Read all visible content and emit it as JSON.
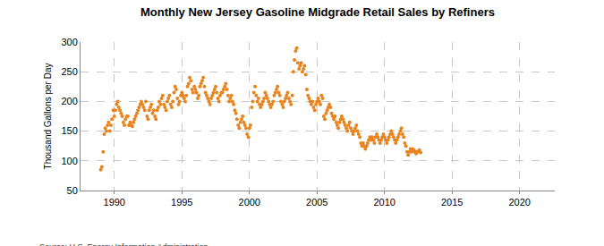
{
  "chart_data": {
    "type": "scatter",
    "title": "Monthly New Jersey Gasoline Midgrade Retail Sales by Refiners",
    "y_label": "Thousand Gallons per Day",
    "annotations": [
      "Source: U.S. Energy Information Administration"
    ],
    "color": "#e8831e",
    "marker": "circle",
    "grid": true,
    "xlim": [
      1987.5,
      2022.6
    ],
    "xticks": [
      1990,
      1995,
      2000,
      2005,
      2010,
      2015,
      2020
    ],
    "ylim": [
      50,
      300
    ],
    "yticks": [
      50,
      100,
      150,
      200,
      250,
      300
    ],
    "x": [
      1989,
      1989.08,
      1989.17,
      1989.25,
      1989.33,
      1989.42,
      1989.5,
      1989.58,
      1989.67,
      1989.75,
      1989.83,
      1989.92,
      1990,
      1990.08,
      1990.17,
      1990.25,
      1990.33,
      1990.42,
      1990.5,
      1990.58,
      1990.67,
      1990.75,
      1990.83,
      1990.92,
      1991,
      1991.08,
      1991.17,
      1991.25,
      1991.33,
      1991.42,
      1991.5,
      1991.58,
      1991.67,
      1991.75,
      1991.83,
      1991.92,
      1992,
      1992.08,
      1992.17,
      1992.25,
      1992.33,
      1992.42,
      1992.5,
      1992.58,
      1992.67,
      1992.75,
      1992.83,
      1992.92,
      1993,
      1993.08,
      1993.17,
      1993.25,
      1993.33,
      1993.42,
      1993.5,
      1993.58,
      1993.67,
      1993.75,
      1993.83,
      1993.92,
      1994,
      1994.08,
      1994.17,
      1994.25,
      1994.33,
      1994.42,
      1994.5,
      1994.58,
      1994.67,
      1994.75,
      1994.83,
      1994.92,
      1995,
      1995.08,
      1995.17,
      1995.25,
      1995.33,
      1995.42,
      1995.5,
      1995.58,
      1995.67,
      1995.75,
      1995.83,
      1995.92,
      1996,
      1996.08,
      1996.17,
      1996.25,
      1996.33,
      1996.42,
      1996.5,
      1996.58,
      1996.67,
      1996.75,
      1996.83,
      1996.92,
      1997,
      1997.08,
      1997.17,
      1997.25,
      1997.33,
      1997.42,
      1997.5,
      1997.58,
      1997.67,
      1997.75,
      1997.83,
      1997.92,
      1998,
      1998.08,
      1998.17,
      1998.25,
      1998.33,
      1998.42,
      1998.5,
      1998.58,
      1998.67,
      1998.75,
      1998.83,
      1998.92,
      1999,
      1999.08,
      1999.17,
      1999.25,
      1999.33,
      1999.42,
      1999.5,
      1999.58,
      1999.67,
      1999.75,
      1999.83,
      1999.92,
      2000,
      2000.08,
      2000.17,
      2000.25,
      2000.33,
      2000.42,
      2000.5,
      2000.58,
      2000.67,
      2000.75,
      2000.83,
      2000.92,
      2001,
      2001.08,
      2001.17,
      2001.25,
      2001.33,
      2001.42,
      2001.5,
      2001.58,
      2001.67,
      2001.75,
      2001.83,
      2001.92,
      2002,
      2002.08,
      2002.17,
      2002.25,
      2002.33,
      2002.42,
      2002.5,
      2002.58,
      2002.67,
      2002.75,
      2002.83,
      2002.92,
      2003,
      2003.08,
      2003.17,
      2003.25,
      2003.33,
      2003.42,
      2003.5,
      2003.58,
      2003.67,
      2003.75,
      2003.83,
      2003.92,
      2004,
      2004.08,
      2004.17,
      2004.25,
      2004.33,
      2004.42,
      2004.5,
      2004.58,
      2004.67,
      2004.75,
      2004.83,
      2004.92,
      2005,
      2005.08,
      2005.17,
      2005.25,
      2005.33,
      2005.42,
      2005.5,
      2005.58,
      2005.67,
      2005.75,
      2005.83,
      2005.92,
      2006,
      2006.08,
      2006.17,
      2006.25,
      2006.33,
      2006.42,
      2006.5,
      2006.58,
      2006.67,
      2006.75,
      2006.83,
      2006.92,
      2007,
      2007.08,
      2007.17,
      2007.25,
      2007.33,
      2007.42,
      2007.5,
      2007.58,
      2007.67,
      2007.75,
      2007.83,
      2007.92,
      2008,
      2008.08,
      2008.17,
      2008.25,
      2008.33,
      2008.42,
      2008.5,
      2008.58,
      2008.67,
      2008.75,
      2008.83,
      2008.92,
      2009,
      2009.08,
      2009.17,
      2009.25,
      2009.33,
      2009.42,
      2009.5,
      2009.58,
      2009.67,
      2009.75,
      2009.83,
      2009.92,
      2010,
      2010.08,
      2010.17,
      2010.25,
      2010.33,
      2010.42,
      2010.5,
      2010.58,
      2010.67,
      2010.75,
      2010.83,
      2010.92,
      2011,
      2011.08,
      2011.17,
      2011.25,
      2011.33,
      2011.42,
      2011.5,
      2011.58,
      2011.67,
      2011.75,
      2011.83,
      2011.92,
      2012,
      2012.08,
      2012.17,
      2012.25,
      2012.33,
      2012.42,
      2012.5,
      2012.58,
      2012.67
    ],
    "values": [
      85,
      90,
      115,
      145,
      155,
      150,
      160,
      165,
      150,
      160,
      170,
      185,
      175,
      185,
      195,
      200,
      190,
      185,
      180,
      175,
      165,
      160,
      170,
      175,
      175,
      160,
      165,
      160,
      158,
      165,
      170,
      175,
      180,
      185,
      190,
      195,
      200,
      195,
      190,
      185,
      200,
      175,
      170,
      185,
      190,
      195,
      180,
      185,
      175,
      170,
      185,
      190,
      200,
      195,
      205,
      210,
      195,
      190,
      185,
      200,
      205,
      210,
      195,
      190,
      200,
      215,
      225,
      220,
      205,
      195,
      200,
      210,
      215,
      210,
      205,
      200,
      210,
      225,
      230,
      240,
      235,
      220,
      215,
      225,
      220,
      215,
      205,
      210,
      225,
      230,
      235,
      240,
      225,
      215,
      210,
      205,
      200,
      195,
      205,
      210,
      215,
      220,
      225,
      215,
      205,
      200,
      210,
      215,
      215,
      220,
      225,
      230,
      220,
      210,
      200,
      205,
      210,
      200,
      195,
      185,
      180,
      170,
      160,
      155,
      165,
      170,
      175,
      165,
      160,
      155,
      145,
      140,
      155,
      160,
      190,
      200,
      215,
      225,
      210,
      200,
      205,
      195,
      190,
      195,
      200,
      205,
      215,
      210,
      205,
      200,
      195,
      190,
      195,
      200,
      210,
      215,
      220,
      225,
      215,
      210,
      200,
      195,
      190,
      200,
      205,
      210,
      215,
      205,
      200,
      195,
      210,
      250,
      270,
      285,
      290,
      265,
      255,
      260,
      265,
      250,
      255,
      260,
      245,
      220,
      210,
      205,
      200,
      195,
      200,
      190,
      185,
      195,
      200,
      205,
      200,
      195,
      210,
      205,
      175,
      170,
      180,
      185,
      190,
      195,
      190,
      180,
      175,
      170,
      175,
      165,
      160,
      155,
      165,
      170,
      175,
      170,
      165,
      160,
      155,
      150,
      160,
      165,
      155,
      150,
      145,
      150,
      155,
      160,
      150,
      145,
      140,
      130,
      125,
      130,
      125,
      120,
      125,
      130,
      135,
      140,
      135,
      140,
      135,
      130,
      140,
      145,
      140,
      135,
      130,
      135,
      140,
      145,
      140,
      135,
      130,
      135,
      140,
      145,
      150,
      145,
      140,
      135,
      130,
      135,
      140,
      145,
      150,
      155,
      145,
      140,
      130,
      125,
      115,
      110,
      115,
      120,
      115,
      120,
      118,
      115,
      112,
      115,
      116,
      118,
      114
    ]
  }
}
